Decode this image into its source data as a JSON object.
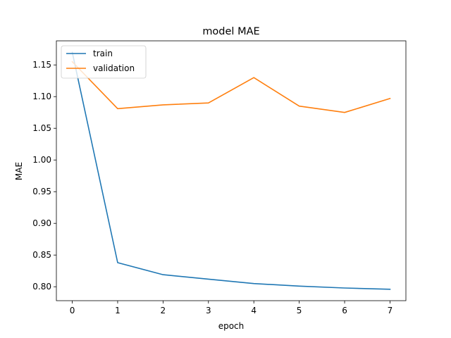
{
  "chart_data": {
    "type": "line",
    "title": "model MAE",
    "xlabel": "epoch",
    "ylabel": "MAE",
    "x": [
      0,
      1,
      2,
      3,
      4,
      5,
      6,
      7
    ],
    "xlim": [
      -0.35,
      7.35
    ],
    "ylim": [
      0.778,
      1.188
    ],
    "xticks": [
      0,
      1,
      2,
      3,
      4,
      5,
      6,
      7
    ],
    "yticks": [
      0.8,
      0.85,
      0.9,
      0.95,
      1.0,
      1.05,
      1.1,
      1.15
    ],
    "ytick_labels": [
      "0.80",
      "0.85",
      "0.90",
      "0.95",
      "1.00",
      "1.05",
      "1.10",
      "1.15"
    ],
    "grid": false,
    "legend_position": "top-left",
    "series": [
      {
        "name": "train",
        "color": "#1f77b4",
        "values": [
          1.17,
          0.838,
          0.819,
          0.812,
          0.805,
          0.801,
          0.798,
          0.796
        ]
      },
      {
        "name": "validation",
        "color": "#ff7f0e",
        "values": [
          1.155,
          1.081,
          1.087,
          1.09,
          1.13,
          1.085,
          1.075,
          1.097
        ]
      }
    ]
  }
}
